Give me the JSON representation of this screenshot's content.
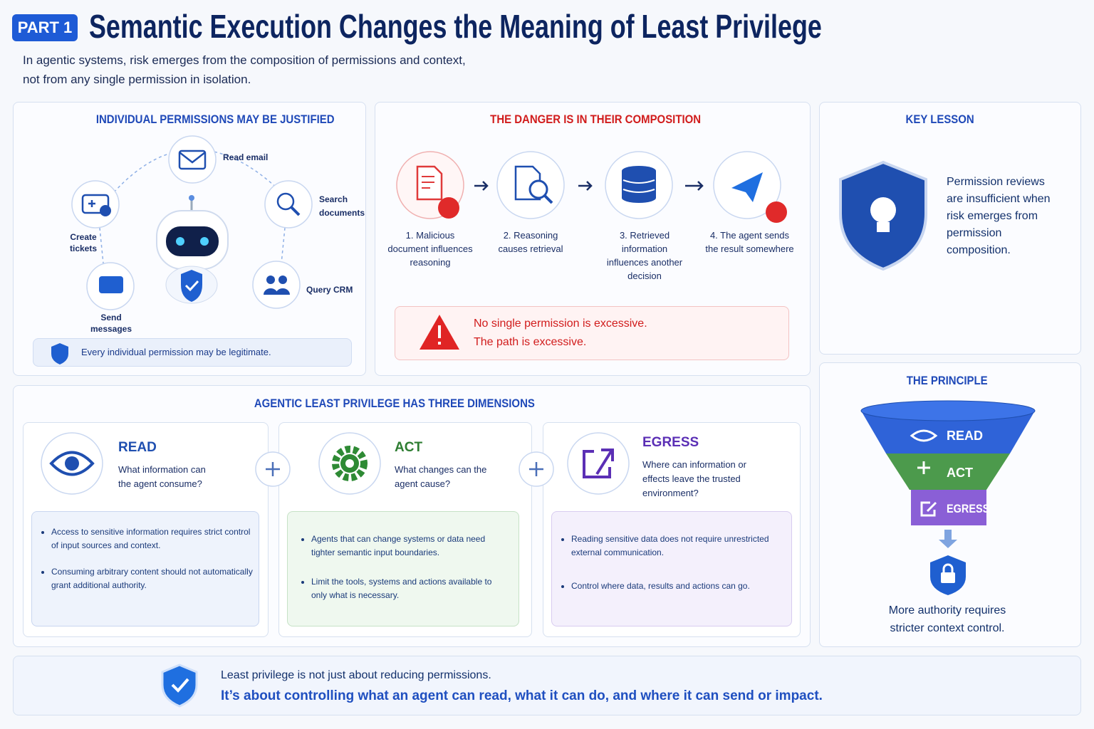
{
  "header": {
    "badge": "PART 1",
    "title": "Semantic Execution Changes the Meaning of Least Privilege",
    "subtitle_lines": [
      "In agentic systems, risk emerges from the composition of permissions and context,",
      "not from any single permission in isolation."
    ]
  },
  "permissions": {
    "title": "INDIVIDUAL PERMISSIONS MAY BE JUSTIFIED",
    "items": [
      "Read email",
      "Search documents",
      "Query CRM",
      "Send messages",
      "Create tickets"
    ],
    "note": "Every individual permission may be legitimate."
  },
  "composition": {
    "title": "THE DANGER IS IN THEIR COMPOSITION",
    "steps": [
      "1. Malicious document influences reasoning",
      "2. Reasoning causes retrieval",
      "3. Retrieved information influences another decision",
      "4. The agent sends the result somewhere"
    ],
    "warning": [
      "No single permission is excessive.",
      "The path is excessive."
    ]
  },
  "key_lesson": {
    "title": "KEY LESSON",
    "text": "Permission reviews are insufficient when risk emerges from permission composition."
  },
  "dimensions": {
    "title": "AGENTIC LEAST PRIVILEGE HAS THREE DIMENSIONS",
    "items": [
      {
        "name": "READ",
        "question": "What information can the agent consume?",
        "bullets": [
          "Access to sensitive information requires strict control of input sources and context.",
          "Consuming arbitrary content should not automatically grant additional authority."
        ]
      },
      {
        "name": "ACT",
        "question": "What changes can the agent cause?",
        "bullets": [
          "Agents that can change systems or data need tighter semantic input boundaries.",
          "Limit the tools, systems and actions available to only what is necessary."
        ]
      },
      {
        "name": "EGRESS",
        "question": "Where can information or effects leave the trusted environment?",
        "bullets": [
          "Reading sensitive data does not require unrestricted external communication.",
          "Control where data, results and actions can go."
        ]
      }
    ]
  },
  "principle": {
    "title": "THE PRINCIPLE",
    "levels": [
      "READ",
      "ACT",
      "EGRESS"
    ],
    "text": "More authority requires stricter context control."
  },
  "footer": {
    "line1": "Least privilege is not just about reducing permissions.",
    "line2": "It’s about controlling what an agent can read, what it can do, and where it can send or impact."
  }
}
